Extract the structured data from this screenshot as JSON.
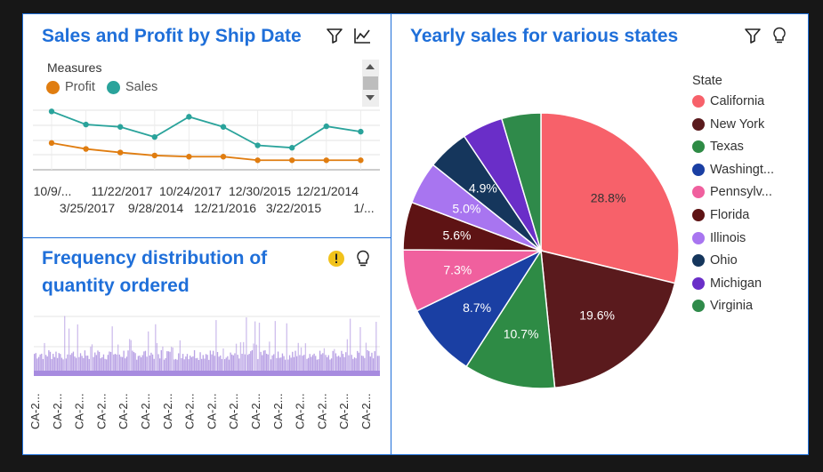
{
  "panels": {
    "sales_profit": {
      "title": "Sales and Profit by Ship Date",
      "icons": [
        "filter-icon",
        "chart-type-icon"
      ]
    },
    "frequency": {
      "title_line1": "Frequency distribution of",
      "title_line2": "quantity ordered",
      "icons": [
        "warning-icon",
        "lightbulb-icon"
      ]
    },
    "yearly": {
      "title": "Yearly sales for various states",
      "icons": [
        "filter-icon",
        "lightbulb-icon"
      ]
    }
  },
  "chart_data": [
    {
      "type": "line",
      "title": "Sales and Profit by Ship Date",
      "legend_title": "Measures",
      "legend_position": "top-left",
      "series": [
        {
          "name": "Profit",
          "color": "#e07d10",
          "values": [
            0.45,
            0.35,
            0.29,
            0.24,
            0.22,
            0.22,
            0.16,
            0.16,
            0.16,
            0.16
          ]
        },
        {
          "name": "Sales",
          "color": "#2aa39b",
          "values": [
            0.98,
            0.76,
            0.72,
            0.55,
            0.89,
            0.72,
            0.41,
            0.37,
            0.73,
            0.64
          ]
        }
      ],
      "x_tick_labels_row1": [
        "10/9/...",
        "11/22/2017",
        "10/24/2017",
        "12/30/2015",
        "12/21/2014"
      ],
      "x_tick_labels_row2": [
        "3/25/2017",
        "9/28/2014",
        "12/21/2016",
        "3/22/2015",
        "1/..."
      ],
      "grid": true,
      "y_axis_shown": false
    },
    {
      "type": "bar",
      "title": "Frequency distribution of quantity ordered",
      "bar_color": "#a78bdf",
      "bar_count": 240,
      "x_tick_label": "CA-2...",
      "x_tick_count": 16,
      "grid": true,
      "values": "dense histogram of many narrow bars (individual values unreadable)"
    },
    {
      "type": "pie",
      "title": "Yearly sales for various states",
      "legend_title": "State",
      "legend_position": "right",
      "categories": [
        "California",
        "New York",
        "Texas",
        "Washingt...",
        "Pennsylv...",
        "Florida",
        "Illinois",
        "Ohio",
        "Michigan",
        "Virginia"
      ],
      "values": [
        28.8,
        19.6,
        10.7,
        8.7,
        7.3,
        5.6,
        5.0,
        4.9,
        4.8,
        4.6
      ],
      "labels": [
        "28.8%",
        "19.6%",
        "10.7%",
        "8.7%",
        "7.3%",
        "5.6%",
        "5.0%",
        "4.9%",
        "",
        ""
      ],
      "colors": [
        "#f7616a",
        "#5a1a1d",
        "#2e8b45",
        "#1a3fa3",
        "#f0609e",
        "#5e1314",
        "#a875f0",
        "#15365c",
        "#6a2ec8",
        "#2f8a4a"
      ]
    }
  ]
}
